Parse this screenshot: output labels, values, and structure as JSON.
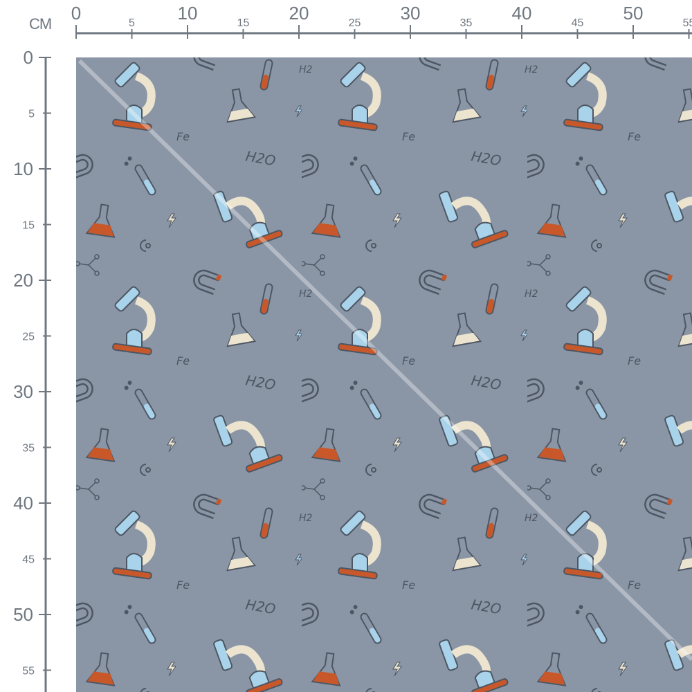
{
  "ruler": {
    "unit": "CM",
    "top_labels": [
      0,
      5,
      10,
      15,
      20,
      25,
      30,
      35,
      40,
      45,
      50,
      55
    ],
    "left_labels": [
      0,
      5,
      10,
      15,
      20,
      25,
      30,
      35,
      40,
      45,
      50,
      55
    ],
    "major_every": 10,
    "color": "#6f7780"
  },
  "fabric": {
    "background": "#8a96a6",
    "pattern": "science doodles",
    "motifs": [
      "microscope",
      "test-tube",
      "conical-flask",
      "horseshoe-magnet",
      "lightning",
      "molecule",
      "H2O",
      "Fe",
      "H2"
    ],
    "colors": {
      "blue": "#a9d3ea",
      "orange": "#c8582a",
      "cream": "#ece4cf",
      "outline": "#4d5662"
    },
    "texts": {
      "h2o": "H2O",
      "fe": "Fe",
      "h2": "H2"
    }
  }
}
